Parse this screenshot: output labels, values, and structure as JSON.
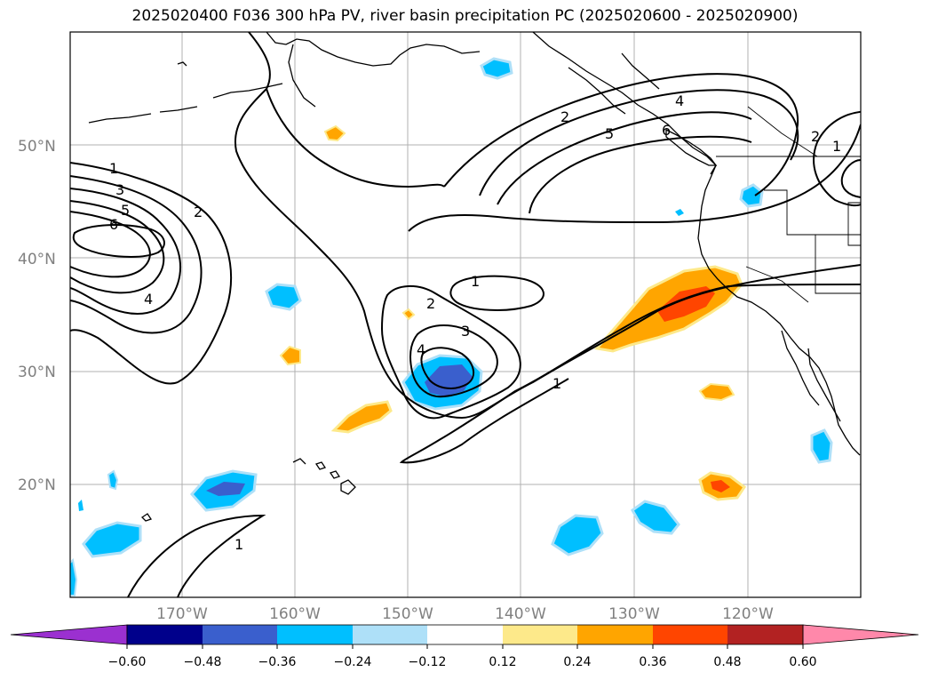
{
  "title": "2025020400 F036 300 hPa PV, river basin precipitation PC (2025020600 - 2025020900)",
  "lat_labels": [
    "50°N",
    "40°N",
    "30°N",
    "20°N"
  ],
  "lon_labels": [
    "170°W",
    "160°W",
    "150°W",
    "140°W",
    "130°W",
    "120°W"
  ],
  "contour_labels": [
    "1",
    "2",
    "3",
    "4",
    "5",
    "6"
  ],
  "colorbar": {
    "colors": [
      "#9b30d0",
      "#00008b",
      "#3a5fcd",
      "#00bfff",
      "#aee0f8",
      "#ffffff",
      "#fde98a",
      "#ffa500",
      "#ff4500",
      "#b22222",
      "#ff88aa"
    ],
    "tick_labels": [
      "−0.60",
      "−0.48",
      "−0.36",
      "−0.24",
      "−0.12",
      "0.12",
      "0.24",
      "0.36",
      "0.48",
      "0.60"
    ]
  }
}
